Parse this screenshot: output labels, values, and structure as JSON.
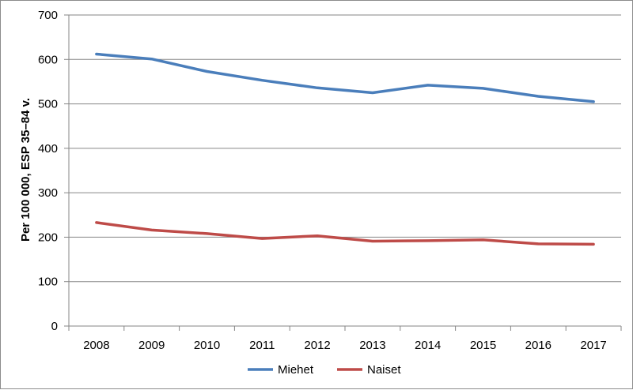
{
  "chart_data": {
    "type": "line",
    "title": "",
    "xlabel": "",
    "ylabel": "Per 100 000, ESP 35–84 v.",
    "ylim": [
      0,
      700
    ],
    "yticks": [
      0,
      100,
      200,
      300,
      400,
      500,
      600,
      700
    ],
    "categories": [
      "2008",
      "2009",
      "2010",
      "2011",
      "2012",
      "2013",
      "2014",
      "2015",
      "2016",
      "2017"
    ],
    "grid": "horizontal",
    "legend_position": "bottom",
    "series": [
      {
        "name": "Miehet",
        "color": "#4a7ebb",
        "values": [
          612,
          601,
          573,
          553,
          536,
          525,
          542,
          535,
          517,
          505
        ]
      },
      {
        "name": "Naiset",
        "color": "#be4b48",
        "values": [
          233,
          216,
          208,
          197,
          203,
          191,
          192,
          194,
          185,
          184
        ]
      }
    ]
  }
}
